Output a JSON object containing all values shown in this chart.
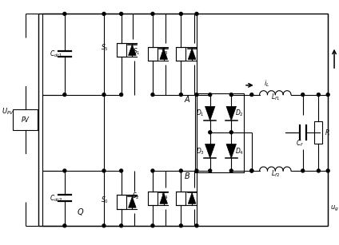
{
  "fig_width": 4.24,
  "fig_height": 3.07,
  "dpi": 100,
  "bg_color": "#ffffff",
  "line_color": "black",
  "line_width": 0.8
}
